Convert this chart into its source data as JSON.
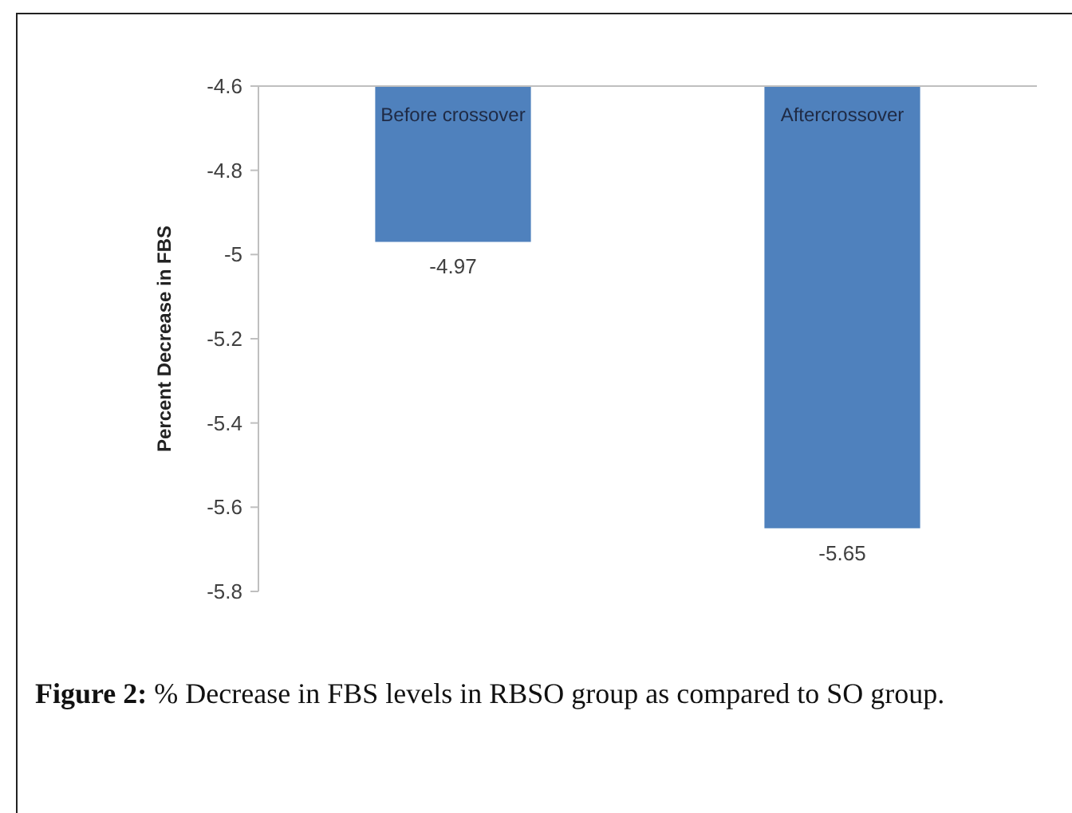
{
  "chart_data": {
    "type": "bar",
    "ylabel": "Percent Decrease in FBS",
    "categories": [
      "Before crossover",
      "Aftercrossover"
    ],
    "values": [
      -4.97,
      -5.65
    ],
    "color": "#4f81bd",
    "ylim": [
      -5.8,
      -4.6
    ],
    "yticks": [
      -5.8,
      -5.6,
      -5.4,
      -5.2,
      -5,
      -4.8,
      -4.6
    ],
    "data_labels": true,
    "annotations": [
      "Figure 2: % Decrease in FBS levels in RBSO group as compared to SO group."
    ]
  }
}
